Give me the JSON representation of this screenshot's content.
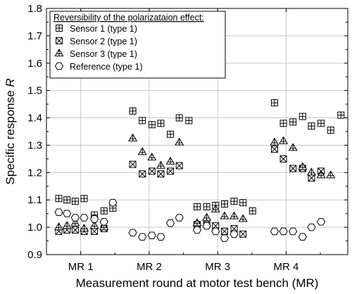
{
  "chart_data": {
    "type": "scatter",
    "xlabel": "Measurement round at motor test bench (MR)",
    "ylabel_prefix": "Specific response ",
    "ylabel_var": "R",
    "ylim": [
      0.9,
      1.8
    ],
    "y_ticks": [
      "0.9",
      "1.0",
      "1.1",
      "1.2",
      "1.3",
      "1.4",
      "1.5",
      "1.6",
      "1.7",
      "1.8"
    ],
    "categories": [
      "MR 1",
      "MR 2",
      "MR 3",
      "MR 4"
    ],
    "grid": true,
    "legend": {
      "title": "Reversibility of the polarizataion effect:",
      "position": "top-left"
    },
    "series": [
      {
        "name": "Sensor 1 (type 1)",
        "marker": "square-plus",
        "points": [
          {
            "x": 0.68,
            "y": 1.105
          },
          {
            "x": 0.8,
            "y": 1.1
          },
          {
            "x": 0.92,
            "y": 1.095
          },
          {
            "x": 1.05,
            "y": 1.105
          },
          {
            "x": 1.2,
            "y": 1.045
          },
          {
            "x": 1.34,
            "y": 1.06
          },
          {
            "x": 1.47,
            "y": 1.07
          },
          {
            "x": 1.76,
            "y": 1.425
          },
          {
            "x": 1.9,
            "y": 1.39
          },
          {
            "x": 2.04,
            "y": 1.375
          },
          {
            "x": 2.17,
            "y": 1.38
          },
          {
            "x": 2.31,
            "y": 1.34
          },
          {
            "x": 2.44,
            "y": 1.4
          },
          {
            "x": 2.58,
            "y": 1.39
          },
          {
            "x": 2.7,
            "y": 1.075
          },
          {
            "x": 2.84,
            "y": 1.075
          },
          {
            "x": 2.97,
            "y": 1.08
          },
          {
            "x": 3.1,
            "y": 1.085
          },
          {
            "x": 3.24,
            "y": 1.095
          },
          {
            "x": 3.37,
            "y": 1.09
          },
          {
            "x": 3.51,
            "y": 1.06
          },
          {
            "x": 3.83,
            "y": 1.455
          },
          {
            "x": 3.96,
            "y": 1.38
          },
          {
            "x": 4.1,
            "y": 1.385
          },
          {
            "x": 4.24,
            "y": 1.405
          },
          {
            "x": 4.37,
            "y": 1.37
          },
          {
            "x": 4.51,
            "y": 1.38
          },
          {
            "x": 4.65,
            "y": 1.355
          },
          {
            "x": 4.8,
            "y": 1.41
          }
        ]
      },
      {
        "name": "Sensor 2 (type 1)",
        "marker": "square-x",
        "points": [
          {
            "x": 0.68,
            "y": 0.985
          },
          {
            "x": 0.8,
            "y": 0.99
          },
          {
            "x": 0.92,
            "y": 0.99
          },
          {
            "x": 1.05,
            "y": 0.985
          },
          {
            "x": 1.2,
            "y": 0.985
          },
          {
            "x": 1.34,
            "y": 0.995
          },
          {
            "x": 1.76,
            "y": 1.23
          },
          {
            "x": 1.9,
            "y": 1.195
          },
          {
            "x": 2.04,
            "y": 1.205
          },
          {
            "x": 2.17,
            "y": 1.195
          },
          {
            "x": 2.31,
            "y": 1.205
          },
          {
            "x": 2.44,
            "y": 1.225
          },
          {
            "x": 2.7,
            "y": 1.01
          },
          {
            "x": 2.84,
            "y": 1.01
          },
          {
            "x": 2.97,
            "y": 1.005
          },
          {
            "x": 3.1,
            "y": 0.985
          },
          {
            "x": 3.24,
            "y": 0.995
          },
          {
            "x": 3.37,
            "y": 0.975
          },
          {
            "x": 3.83,
            "y": 1.285
          },
          {
            "x": 3.96,
            "y": 1.25
          },
          {
            "x": 4.1,
            "y": 1.215
          },
          {
            "x": 4.24,
            "y": 1.215
          },
          {
            "x": 4.37,
            "y": 1.18
          },
          {
            "x": 4.51,
            "y": 1.205
          }
        ]
      },
      {
        "name": "Sensor 3 (type 1)",
        "marker": "triangle-plus",
        "points": [
          {
            "x": 0.68,
            "y": 1.0
          },
          {
            "x": 0.8,
            "y": 1.005
          },
          {
            "x": 0.92,
            "y": 1.015
          },
          {
            "x": 1.05,
            "y": 0.995
          },
          {
            "x": 1.2,
            "y": 1.005
          },
          {
            "x": 1.34,
            "y": 1.0
          },
          {
            "x": 1.76,
            "y": 1.325
          },
          {
            "x": 1.9,
            "y": 1.275
          },
          {
            "x": 2.04,
            "y": 1.255
          },
          {
            "x": 2.17,
            "y": 1.225
          },
          {
            "x": 2.31,
            "y": 1.24
          },
          {
            "x": 2.44,
            "y": 1.31
          },
          {
            "x": 2.7,
            "y": 1.015
          },
          {
            "x": 2.84,
            "y": 1.035
          },
          {
            "x": 2.97,
            "y": 1.065
          },
          {
            "x": 3.1,
            "y": 1.04
          },
          {
            "x": 3.24,
            "y": 1.04
          },
          {
            "x": 3.37,
            "y": 1.03
          },
          {
            "x": 3.83,
            "y": 1.31
          },
          {
            "x": 3.96,
            "y": 1.315
          },
          {
            "x": 4.1,
            "y": 1.29
          },
          {
            "x": 4.24,
            "y": 1.22
          },
          {
            "x": 4.37,
            "y": 1.2
          },
          {
            "x": 4.51,
            "y": 1.19
          },
          {
            "x": 4.65,
            "y": 1.19
          }
        ]
      },
      {
        "name": "Reference (type 1)",
        "marker": "hexagon",
        "points": [
          {
            "x": 0.68,
            "y": 1.055
          },
          {
            "x": 0.8,
            "y": 1.05
          },
          {
            "x": 0.92,
            "y": 1.035
          },
          {
            "x": 1.05,
            "y": 1.035
          },
          {
            "x": 1.2,
            "y": 1.03
          },
          {
            "x": 1.34,
            "y": 1.02
          },
          {
            "x": 1.47,
            "y": 1.09
          },
          {
            "x": 1.76,
            "y": 0.98
          },
          {
            "x": 1.9,
            "y": 0.965
          },
          {
            "x": 2.04,
            "y": 0.97
          },
          {
            "x": 2.17,
            "y": 0.965
          },
          {
            "x": 2.31,
            "y": 1.015
          },
          {
            "x": 2.44,
            "y": 1.035
          },
          {
            "x": 2.7,
            "y": 0.99
          },
          {
            "x": 2.84,
            "y": 1.005
          },
          {
            "x": 2.97,
            "y": 0.985
          },
          {
            "x": 3.1,
            "y": 0.96
          },
          {
            "x": 3.24,
            "y": 0.975
          },
          {
            "x": 3.83,
            "y": 0.985
          },
          {
            "x": 3.96,
            "y": 0.985
          },
          {
            "x": 4.1,
            "y": 0.985
          },
          {
            "x": 4.24,
            "y": 0.965
          },
          {
            "x": 4.37,
            "y": 1.0
          },
          {
            "x": 4.51,
            "y": 1.02
          }
        ]
      }
    ]
  }
}
